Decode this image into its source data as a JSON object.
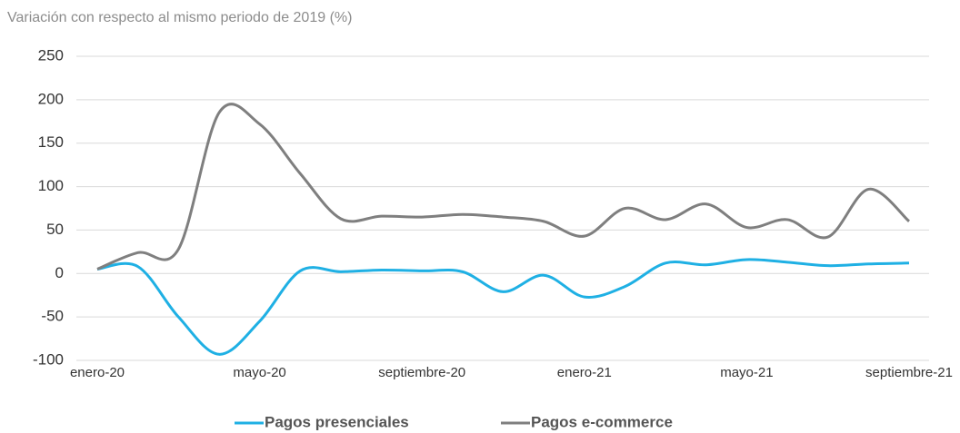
{
  "chart_data": {
    "type": "line",
    "subtitle": "Variación con respecto al mismo periodo de 2019 (%)",
    "categories": [
      "enero-20",
      null,
      null,
      null,
      "mayo-20",
      null,
      null,
      null,
      "septiembre-20",
      null,
      null,
      null,
      "enero-21",
      null,
      null,
      null,
      "mayo-21",
      null,
      null,
      null,
      "septiembre-21"
    ],
    "series": [
      {
        "name": "Pagos presenciales",
        "color": "#1fb0e4",
        "values": [
          5,
          8,
          -50,
          -93,
          -55,
          3,
          2,
          4,
          3,
          2,
          -21,
          -2,
          -27,
          -15,
          12,
          10,
          16,
          13,
          9,
          11,
          12
        ]
      },
      {
        "name": "Pagos e-commerce",
        "color": "#7f7f7f",
        "values": [
          5,
          24,
          28,
          185,
          172,
          115,
          63,
          66,
          65,
          68,
          65,
          60,
          43,
          75,
          62,
          80,
          53,
          62,
          42,
          97,
          60
        ]
      }
    ],
    "ylim": [
      -100,
      250
    ],
    "yticks": [
      -100,
      -50,
      0,
      50,
      100,
      150,
      200,
      250
    ],
    "grid": true,
    "legend": "bottom"
  }
}
